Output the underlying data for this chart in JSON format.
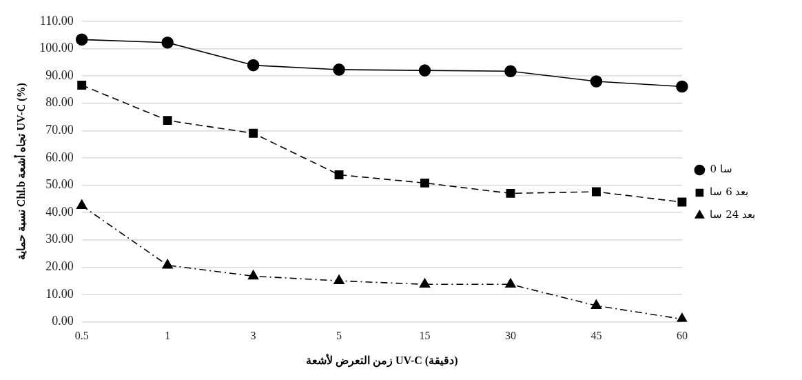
{
  "chart_data": {
    "type": "line",
    "xlabel": "زمن التعرض لأشعة UV-C (دقيقة)",
    "ylabel": "نسبة حماية Chl.b تجاه أشعة UV-C (%)",
    "categories": [
      "0.5",
      "1",
      "3",
      "5",
      "15",
      "30",
      "45",
      "60"
    ],
    "ylim": [
      0,
      110
    ],
    "yticks": [
      {
        "value": 0,
        "label": "0.00"
      },
      {
        "value": 10,
        "label": "10.00"
      },
      {
        "value": 20,
        "label": "20.00"
      },
      {
        "value": 30,
        "label": "30.00"
      },
      {
        "value": 40,
        "label": "40.00"
      },
      {
        "value": 50,
        "label": "50.00"
      },
      {
        "value": 60,
        "label": "60.00"
      },
      {
        "value": 70,
        "label": "70.00"
      },
      {
        "value": 80,
        "label": "80.00"
      },
      {
        "value": 90,
        "label": "90.00"
      },
      {
        "value": 100,
        "label": "100.00"
      },
      {
        "value": 110,
        "label": "110.00"
      }
    ],
    "grid": "y",
    "legend": "right",
    "series": [
      {
        "name": "0 سا",
        "color": "#000000",
        "marker": "circle",
        "line_style": "solid",
        "values": [
          103.3,
          102.2,
          93.9,
          92.3,
          92,
          91.7,
          88,
          86.1
        ]
      },
      {
        "name": "بعد 6 سا",
        "color": "#000000",
        "marker": "square",
        "line_style": "dashed",
        "values": [
          86.6,
          73.7,
          69,
          53.8,
          50.8,
          47,
          47.6,
          43.8
        ]
      },
      {
        "name": "بعد 24 سا",
        "color": "#000000",
        "marker": "triangle",
        "line_style": "dashdot",
        "values": [
          42.5,
          20.7,
          16.7,
          15,
          13.7,
          13.7,
          5.9,
          1
        ]
      }
    ]
  }
}
